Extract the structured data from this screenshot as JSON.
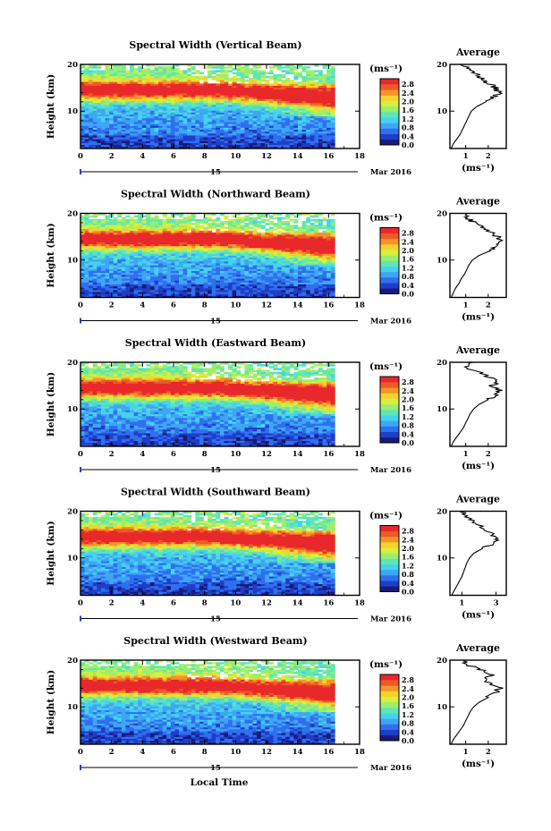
{
  "figure": {
    "xlabel": "Local Time"
  },
  "date_label": {
    "day": "15",
    "month_year": "Mar 2016"
  },
  "colorbar": {
    "unit": "(ms⁻¹)",
    "tick_labels": [
      "0.0",
      "0.4",
      "0.8",
      "1.2",
      "1.6",
      "2.0",
      "2.4",
      "2.8"
    ],
    "colors": [
      "#1a1a78",
      "#1f3ec8",
      "#2f6ff0",
      "#3ea6f5",
      "#45d3ec",
      "#5fe6b4",
      "#9cee6e",
      "#d6f03c",
      "#f6d22c",
      "#f59428",
      "#ee5a26",
      "#e8282a"
    ]
  },
  "chart_data": [
    {
      "type": "heatmap",
      "title": "Spectral Width (Vertical Beam)",
      "ylabel": "Height (km)",
      "xlim": [
        0,
        18
      ],
      "ylim": [
        2,
        20
      ],
      "xticks": [
        0,
        2,
        4,
        6,
        8,
        10,
        12,
        14,
        16,
        18
      ],
      "yticks": [
        10,
        20
      ],
      "data_end_hour": 16.4,
      "colorbar_range": [
        0.0,
        2.8
      ],
      "side_profile": {
        "title": "Average",
        "xlabel": "(ms⁻¹)",
        "xticks": [
          1,
          2
        ],
        "xlim": [
          0.3,
          2.8
        ],
        "heights": [
          2,
          3,
          4,
          5,
          6,
          7,
          8,
          9,
          10,
          11,
          12,
          13,
          14,
          15,
          16,
          17,
          18,
          19,
          20
        ],
        "values": [
          0.35,
          0.45,
          0.6,
          0.75,
          0.85,
          0.95,
          1.05,
          1.15,
          1.25,
          1.5,
          1.9,
          2.2,
          2.5,
          2.3,
          2.0,
          1.7,
          1.5,
          1.2,
          0.9
        ]
      }
    },
    {
      "type": "heatmap",
      "title": "Spectral Width (Northward Beam)",
      "ylabel": "Height (km)",
      "xlim": [
        0,
        18
      ],
      "ylim": [
        2,
        20
      ],
      "xticks": [
        0,
        2,
        4,
        6,
        8,
        10,
        12,
        14,
        16,
        18
      ],
      "yticks": [
        10,
        20
      ],
      "data_end_hour": 16.4,
      "colorbar_range": [
        0.0,
        2.8
      ],
      "side_profile": {
        "title": "Average",
        "xlabel": "(ms⁻¹)",
        "xticks": [
          1,
          2
        ],
        "xlim": [
          0.3,
          2.8
        ],
        "heights": [
          2,
          3,
          4,
          5,
          6,
          7,
          8,
          9,
          10,
          11,
          12,
          13,
          14,
          15,
          16,
          17,
          18,
          19,
          20
        ],
        "values": [
          0.35,
          0.45,
          0.55,
          0.7,
          0.8,
          0.95,
          1.05,
          1.15,
          1.3,
          1.6,
          2.1,
          2.4,
          2.6,
          2.4,
          2.1,
          1.8,
          1.4,
          1.1,
          0.9
        ]
      }
    },
    {
      "type": "heatmap",
      "title": "Spectral Width (Eastward Beam)",
      "ylabel": "Height (km)",
      "xlim": [
        0,
        18
      ],
      "ylim": [
        2,
        20
      ],
      "xticks": [
        0,
        2,
        4,
        6,
        8,
        10,
        12,
        14,
        16,
        18
      ],
      "yticks": [
        10,
        20
      ],
      "data_end_hour": 16.4,
      "colorbar_range": [
        0.0,
        2.8
      ],
      "side_profile": {
        "title": "Average",
        "xlabel": "(ms⁻¹)",
        "xticks": [
          1,
          2
        ],
        "xlim": [
          0.3,
          2.8
        ],
        "heights": [
          2,
          3,
          4,
          5,
          6,
          7,
          8,
          9,
          10,
          11,
          12,
          13,
          14,
          15,
          16,
          17,
          18,
          19,
          20
        ],
        "values": [
          0.35,
          0.45,
          0.6,
          0.75,
          0.9,
          1.0,
          1.1,
          1.2,
          1.35,
          1.6,
          2.0,
          2.3,
          2.5,
          2.2,
          2.4,
          1.9,
          1.5,
          1.0,
          1.2
        ]
      }
    },
    {
      "type": "heatmap",
      "title": "Spectral Width (Southward Beam)",
      "ylabel": "Height (km)",
      "xlim": [
        0,
        18
      ],
      "ylim": [
        2,
        20
      ],
      "xticks": [
        0,
        2,
        4,
        6,
        8,
        10,
        12,
        14,
        16,
        18
      ],
      "yticks": [
        10,
        20
      ],
      "data_end_hour": 16.4,
      "colorbar_range": [
        0.0,
        2.8
      ],
      "side_profile": {
        "title": "Average",
        "xlabel": "(ms⁻¹)",
        "xticks": [
          1,
          3
        ],
        "xlim": [
          0.3,
          3.6
        ],
        "heights": [
          2,
          3,
          4,
          5,
          6,
          7,
          8,
          9,
          10,
          11,
          12,
          13,
          14,
          15,
          16,
          17,
          18,
          19,
          20
        ],
        "values": [
          0.4,
          0.55,
          0.7,
          0.85,
          1.0,
          1.1,
          1.2,
          1.3,
          1.45,
          1.7,
          2.2,
          2.8,
          3.1,
          2.8,
          2.4,
          2.0,
          1.6,
          1.2,
          1.0
        ]
      }
    },
    {
      "type": "heatmap",
      "title": "Spectral Width (Westward Beam)",
      "ylabel": "Height (km)",
      "xlim": [
        0,
        18
      ],
      "ylim": [
        2,
        20
      ],
      "xticks": [
        0,
        2,
        4,
        6,
        8,
        10,
        12,
        14,
        16,
        18
      ],
      "yticks": [
        10,
        20
      ],
      "data_end_hour": 16.4,
      "colorbar_range": [
        0.0,
        2.8
      ],
      "side_profile": {
        "title": "Average",
        "xlabel": "(ms⁻¹)",
        "xticks": [
          1,
          2
        ],
        "xlim": [
          0.3,
          2.8
        ],
        "heights": [
          2,
          3,
          4,
          5,
          6,
          7,
          8,
          9,
          10,
          11,
          12,
          13,
          14,
          15,
          16,
          17,
          18,
          19,
          20
        ],
        "values": [
          0.35,
          0.45,
          0.6,
          0.75,
          0.9,
          1.0,
          1.1,
          1.2,
          1.35,
          1.6,
          2.0,
          2.3,
          2.5,
          2.1,
          1.9,
          2.2,
          1.6,
          1.1,
          0.9
        ]
      }
    }
  ]
}
